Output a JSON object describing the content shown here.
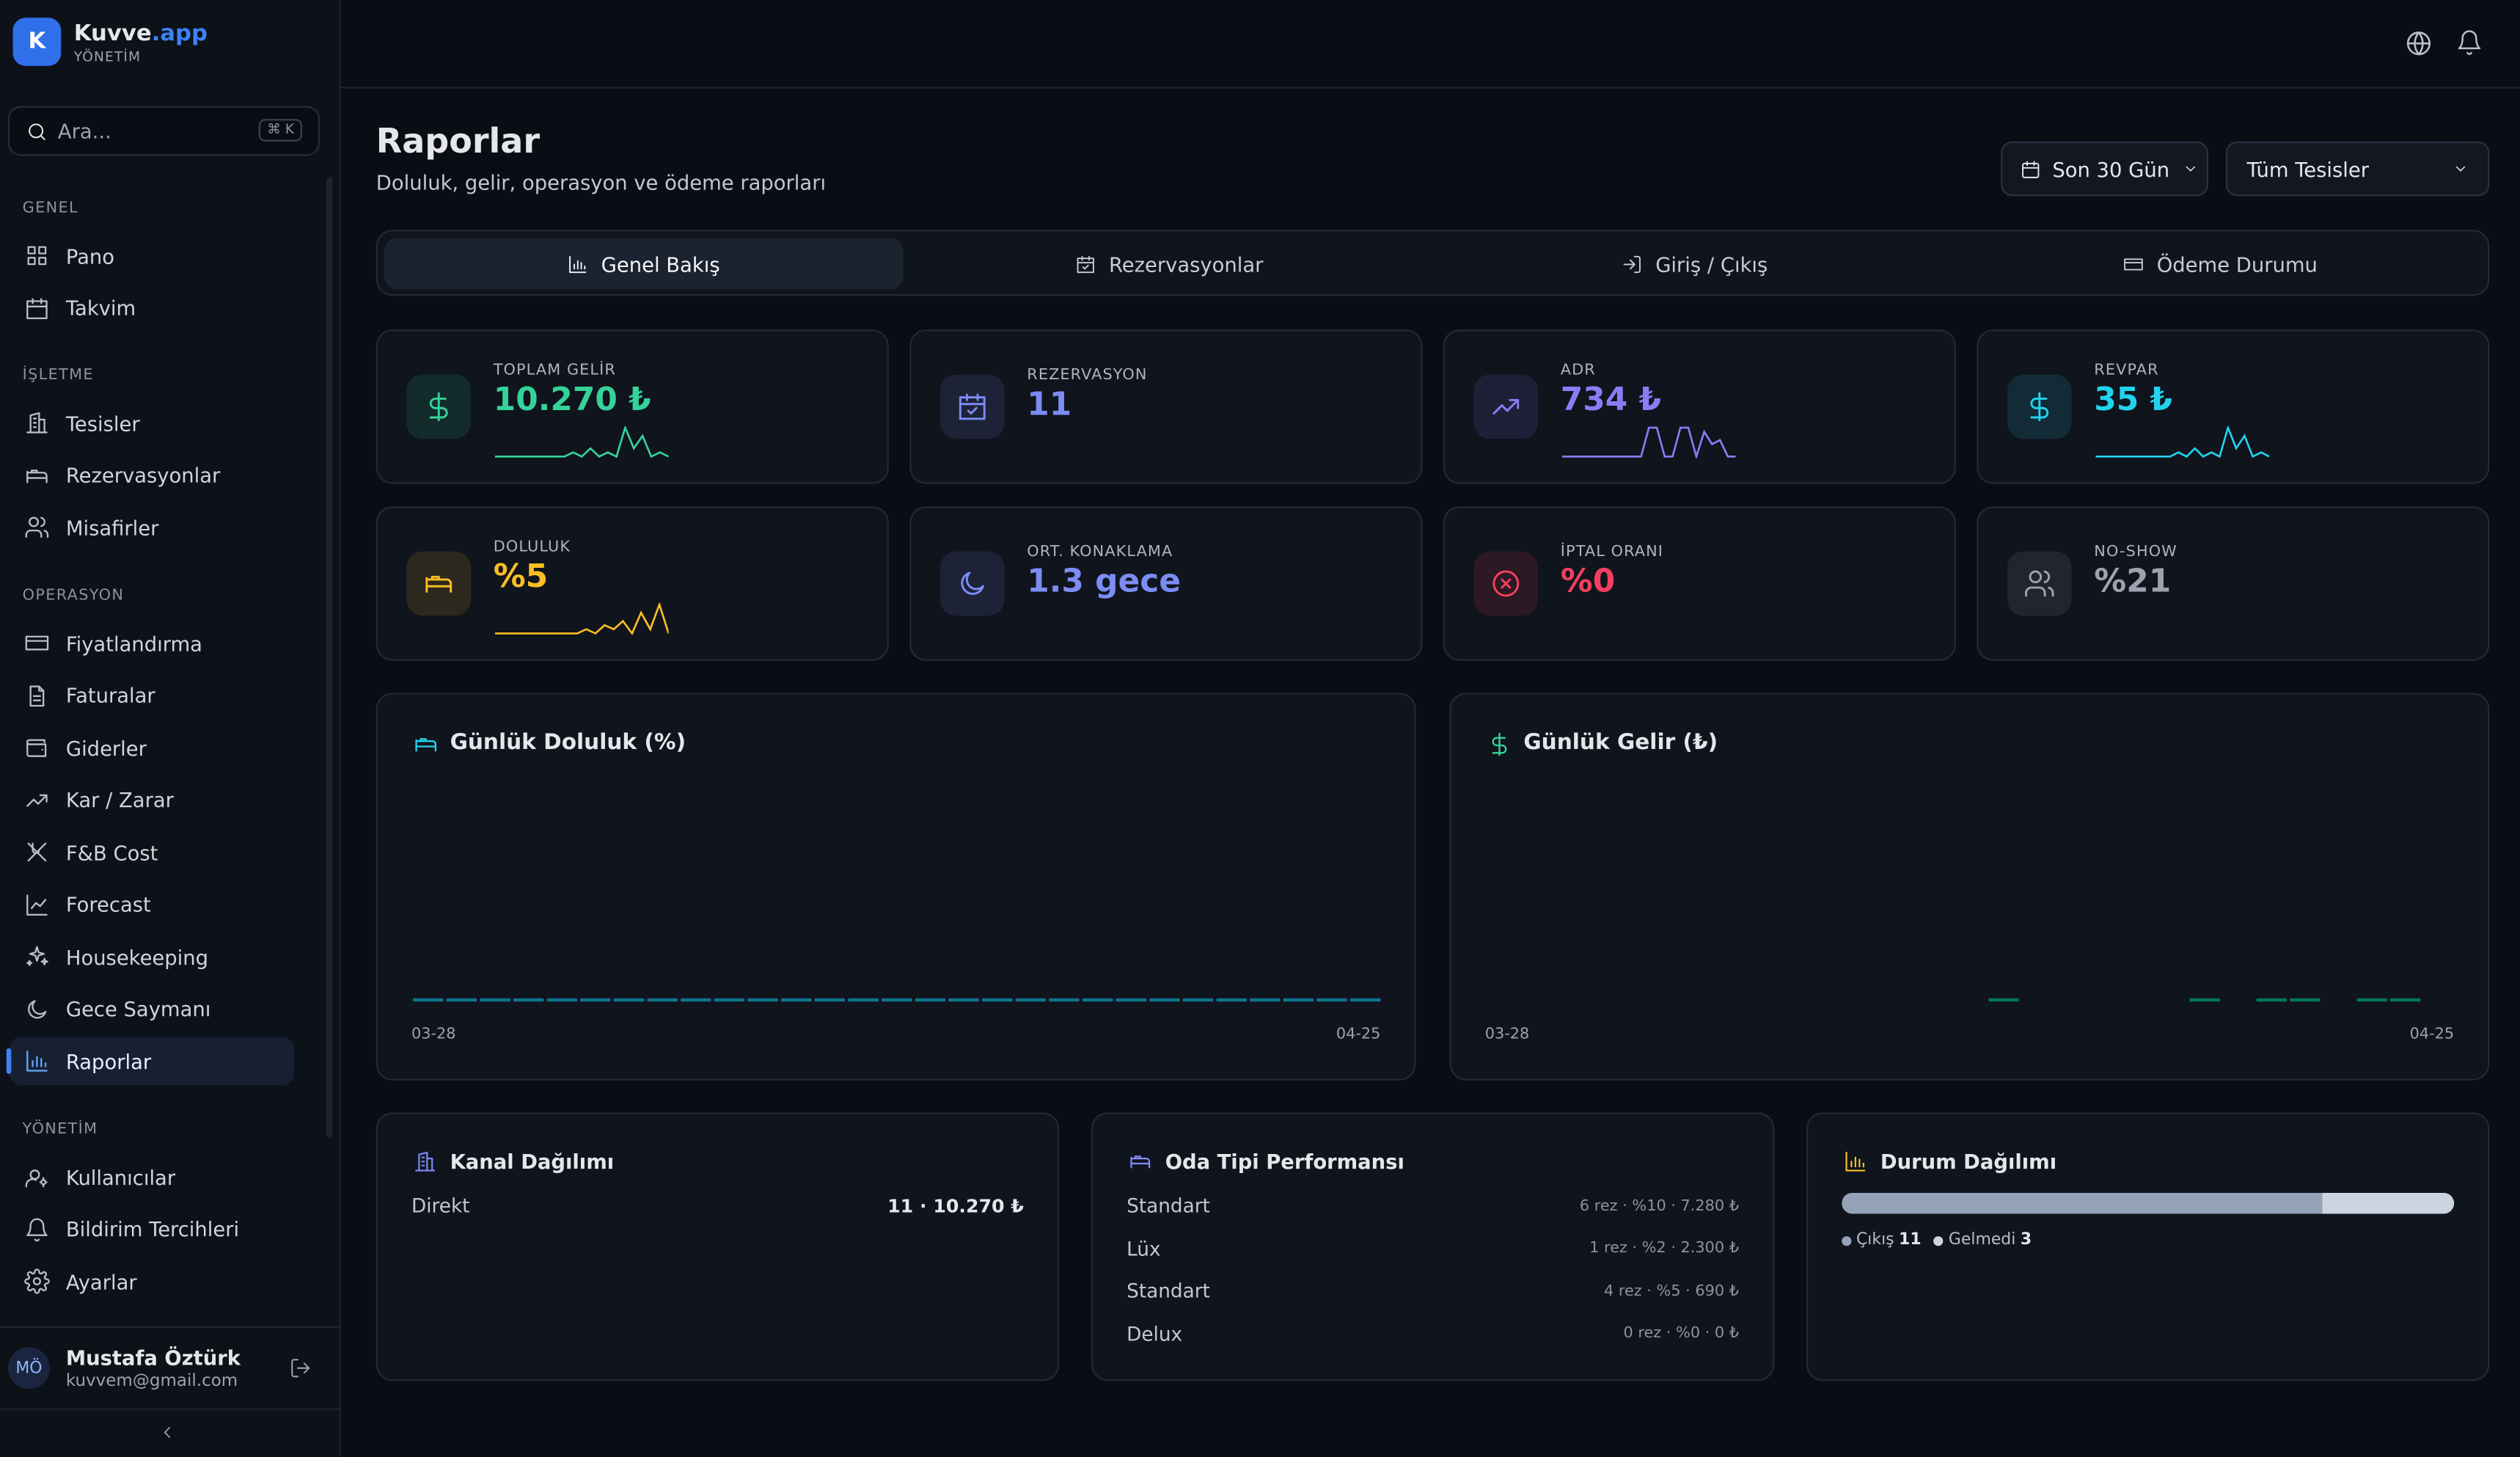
{
  "brand": {
    "logo": "K",
    "name": "Kuvve",
    "suffix": ".app",
    "sub": "YÖNETİM"
  },
  "search": {
    "placeholder": "Ara...",
    "shortcut": "⌘ K"
  },
  "nav": [
    {
      "section": "GENEL",
      "items": [
        "Pano",
        "Takvim"
      ]
    },
    {
      "section": "İŞLETME",
      "items": [
        "Tesisler",
        "Rezervasyonlar",
        "Misafirler"
      ]
    },
    {
      "section": "OPERASYON",
      "items": [
        "Fiyatlandırma",
        "Faturalar",
        "Giderler",
        "Kar / Zarar",
        "F&B Cost",
        "Forecast",
        "Housekeeping",
        "Gece Saymanı",
        "Raporlar"
      ]
    },
    {
      "section": "YÖNETİM",
      "items": [
        "Kullanıcılar",
        "Bildirim Tercihleri",
        "Ayarlar"
      ]
    }
  ],
  "user": {
    "initials": "MÖ",
    "name": "Mustafa Öztürk",
    "email": "kuvvem@gmail.com"
  },
  "header": {
    "title": "Raporlar",
    "subtitle": "Doluluk, gelir, operasyon ve ödeme raporları"
  },
  "filters": {
    "period": "Son 30 Gün",
    "property": "Tüm Tesisler"
  },
  "tabs": [
    "Genel Bakış",
    "Rezervasyonlar",
    "Giriş / Çıkış",
    "Ödeme Durumu"
  ],
  "kpis": [
    {
      "label": "TOPLAM GELİR",
      "value": "10.270 ₺",
      "color": "#34d399",
      "spark": [
        0,
        0,
        0,
        0,
        0,
        0,
        0,
        0,
        0,
        1,
        0,
        2,
        0,
        1,
        0,
        7,
        2,
        5,
        0,
        1,
        0
      ]
    },
    {
      "label": "REZERVASYON",
      "value": "11",
      "color": "#7c8cf5"
    },
    {
      "label": "ADR",
      "value": "734 ₺",
      "color": "#8b7cf6",
      "spark": [
        0,
        0,
        0,
        0,
        0,
        0,
        0,
        0,
        0,
        0,
        0,
        7,
        7,
        0,
        0,
        7,
        7,
        0,
        6,
        3,
        4,
        0,
        0
      ]
    },
    {
      "label": "REVPAR",
      "value": "35 ₺",
      "color": "#22d3ee",
      "spark": [
        0,
        0,
        0,
        0,
        0,
        0,
        0,
        0,
        0,
        0,
        1,
        0,
        2,
        0,
        1,
        0,
        7,
        2,
        5,
        0,
        1,
        0
      ]
    },
    {
      "label": "DOLULUK",
      "value": "%5",
      "color": "#fbbf24",
      "spark": [
        0,
        0,
        0,
        0,
        0,
        0,
        0,
        0,
        0,
        0,
        1,
        0,
        2,
        1,
        3,
        0,
        5,
        1,
        7,
        0
      ]
    },
    {
      "label": "ORT. KONAKLAMA",
      "value": "1.3 gece",
      "color": "#7c8cf5"
    },
    {
      "label": "İPTAL ORANI",
      "value": "%0",
      "color": "#f43f5e"
    },
    {
      "label": "NO-SHOW",
      "value": "%21",
      "color": "#9ca3af"
    }
  ],
  "charts": [
    {
      "title": "Günlük Doluluk (%)",
      "color": "#0e7490",
      "x_start": "03-28",
      "x_end": "04-25",
      "values": [
        0,
        0,
        0,
        0,
        0,
        0,
        0,
        0,
        0,
        0,
        0,
        0,
        0,
        0,
        0,
        0,
        0,
        0,
        0,
        0,
        0,
        0,
        0,
        0,
        0,
        0,
        0,
        0,
        0
      ]
    },
    {
      "title": "Günlük Gelir (₺)",
      "color": "#047857",
      "x_start": "03-28",
      "x_end": "04-25",
      "values": [
        null,
        null,
        null,
        null,
        null,
        null,
        null,
        null,
        null,
        null,
        null,
        null,
        null,
        null,
        null,
        0,
        null,
        null,
        null,
        null,
        null,
        0,
        null,
        0,
        0,
        null,
        0,
        0,
        null
      ]
    }
  ],
  "channels": {
    "title": "Kanal Dağılımı",
    "rows": [
      [
        "Direkt",
        "11 · 10.270 ₺"
      ]
    ]
  },
  "room_types": {
    "title": "Oda Tipi Performansı",
    "rows": [
      [
        "Standart",
        "6 rez · %10 · 7.280 ₺"
      ],
      [
        "Lüx",
        "1 rez · %2 · 2.300 ₺"
      ],
      [
        "Standart",
        "4 rez · %5 · 690 ₺"
      ],
      [
        "Delux",
        "0 rez · %0 · 0 ₺"
      ]
    ]
  },
  "status": {
    "title": "Durum Dağılımı",
    "items": [
      {
        "label": "Çıkış",
        "count": 11,
        "color": "#94a3b8"
      },
      {
        "label": "Gelmedi",
        "count": 3,
        "color": "#cbd5e1"
      }
    ]
  }
}
